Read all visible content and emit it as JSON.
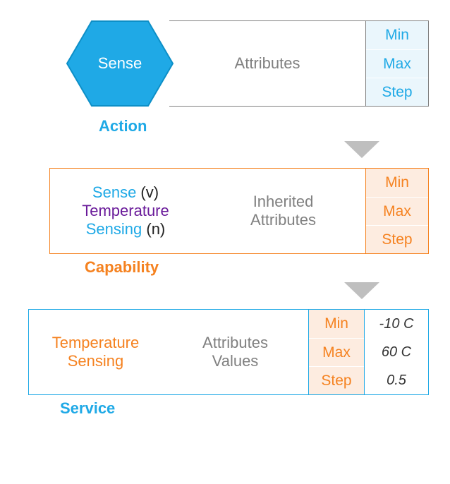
{
  "colors": {
    "blue": "#1fa9e6",
    "blue_dark": "#0d8fc7",
    "orange": "#f58220",
    "orange_border": "#f58220",
    "purple": "#6a1b9a",
    "gray_text": "#808080",
    "gray_border": "#808080",
    "arrow": "#bfbfbf",
    "action_attr_bg": "#eaf6fc",
    "cap_attr_bg": "#fdece0",
    "svc_attr_bg": "#fdece0"
  },
  "action": {
    "hex_label": "Sense",
    "mid": "Attributes",
    "attrs": [
      "Min",
      "Max",
      "Step"
    ],
    "caption": "Action"
  },
  "capability": {
    "left_lines": [
      {
        "text": "Sense",
        "color": "blue",
        "suffix": "(v)"
      },
      {
        "text": "Temperature",
        "color": "purple",
        "suffix": ""
      },
      {
        "text": "Sensing",
        "color": "blue",
        "suffix": "(n)"
      }
    ],
    "mid_lines": [
      "Inherited",
      "Attributes"
    ],
    "attrs": [
      "Min",
      "Max",
      "Step"
    ],
    "caption": "Capability"
  },
  "service": {
    "left_lines": [
      "Temperature",
      "Sensing"
    ],
    "mid_lines": [
      "Attributes",
      "Values"
    ],
    "attrs": [
      "Min",
      "Max",
      "Step"
    ],
    "values": [
      "-10 C",
      "60 C",
      "0.5"
    ],
    "caption": "Service"
  }
}
